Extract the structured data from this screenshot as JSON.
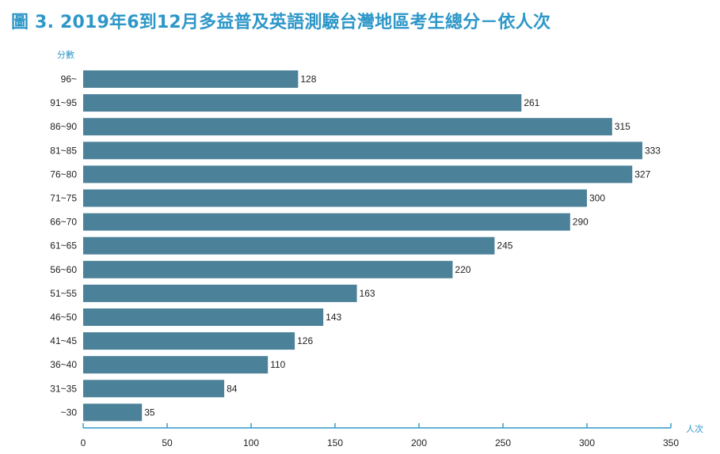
{
  "chart_data": {
    "type": "bar",
    "orientation": "horizontal",
    "title": "圖 3. 2019年6到12月多益普及英語測驗台灣地區考生總分－依人次",
    "ylabel": "分數",
    "xlabel": "人次",
    "categories": [
      "96~",
      "91~95",
      "86~90",
      "81~85",
      "76~80",
      "71~75",
      "66~70",
      "61~65",
      "56~60",
      "51~55",
      "46~50",
      "41~45",
      "36~40",
      "31~35",
      "~30"
    ],
    "values": [
      128,
      261,
      315,
      333,
      327,
      300,
      290,
      245,
      220,
      163,
      143,
      126,
      110,
      84,
      35
    ],
    "xlim": [
      0,
      350
    ],
    "xticks": [
      0,
      50,
      100,
      150,
      200,
      250,
      300,
      350
    ],
    "grid": false,
    "bar_color": "#4b8199",
    "accent_color": "#2d97c8"
  }
}
